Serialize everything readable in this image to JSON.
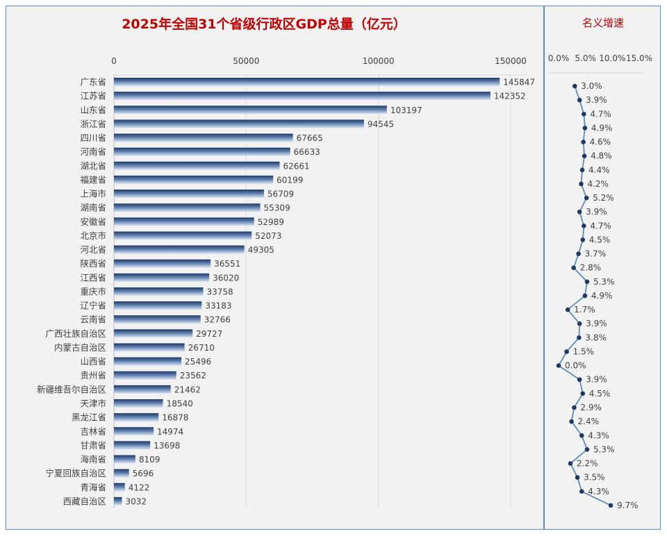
{
  "chart_data": [
    {
      "type": "bar",
      "orientation": "horizontal",
      "title": "2025年全国31个省级行政区GDP总量（亿元）",
      "xlim": [
        0,
        150000
      ],
      "xticks": [
        0,
        50000,
        100000,
        150000
      ],
      "grid": true,
      "colors": {
        "bar_dark": "#1f3864",
        "bar_light": "#dbe6f4",
        "title": "#c00000"
      },
      "categories": [
        "广东省",
        "江苏省",
        "山东省",
        "浙江省",
        "四川省",
        "河南省",
        "湖北省",
        "福建省",
        "上海市",
        "湖南省",
        "安徽省",
        "北京市",
        "河北省",
        "陕西省",
        "江西省",
        "重庆市",
        "辽宁省",
        "云南省",
        "广西壮族自治区",
        "内蒙古自治区",
        "山西省",
        "贵州省",
        "新疆维吾尔自治区",
        "天津市",
        "黑龙江省",
        "吉林省",
        "甘肃省",
        "海南省",
        "宁夏回族自治区",
        "青海省",
        "西藏自治区"
      ],
      "values": [
        145847,
        142352,
        103197,
        94545,
        67665,
        66633,
        62661,
        60199,
        56709,
        55309,
        52989,
        52073,
        49305,
        36551,
        36020,
        33758,
        33183,
        32766,
        29727,
        26710,
        25496,
        23562,
        21462,
        18540,
        16878,
        14974,
        13698,
        8109,
        5696,
        4122,
        3032
      ]
    },
    {
      "type": "line",
      "title": "名义增速",
      "xlim": [
        0,
        15
      ],
      "xticks": [
        "0.0%",
        "5.0%",
        "10.0%",
        "15.0%"
      ],
      "colors": {
        "line": "#5b8db8",
        "marker": "#1f3864",
        "title": "#c00000"
      },
      "values": [
        3.0,
        3.9,
        4.7,
        4.9,
        4.6,
        4.8,
        4.4,
        4.2,
        5.2,
        3.9,
        4.7,
        4.5,
        3.7,
        2.8,
        5.3,
        4.9,
        1.7,
        3.9,
        3.8,
        1.5,
        0.0,
        3.9,
        4.5,
        2.9,
        2.4,
        4.3,
        5.3,
        2.2,
        3.5,
        4.3,
        9.7
      ]
    }
  ]
}
